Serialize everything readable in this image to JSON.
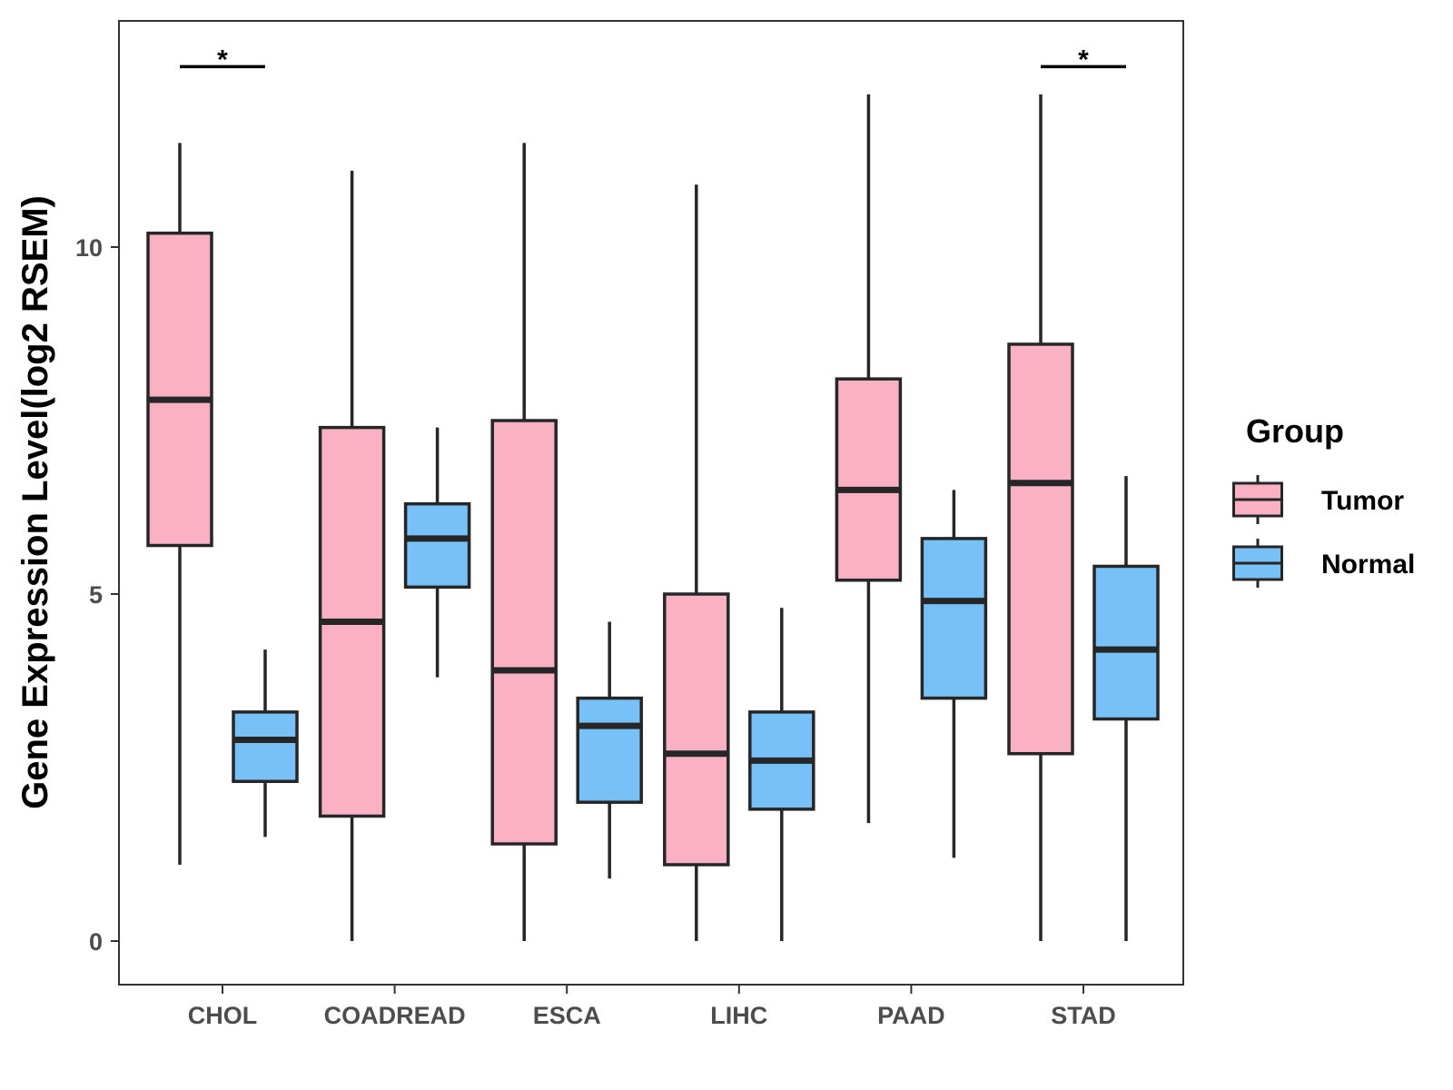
{
  "chart_data": {
    "type": "boxplot",
    "title": "",
    "xlabel": "",
    "ylabel": "Gene Expression Level(log2 RSEM)",
    "ylim": [
      -0.6,
      13.2
    ],
    "yticks": [
      0,
      5,
      10
    ],
    "categories": [
      "CHOL",
      "COADREAD",
      "ESCA",
      "LIHC",
      "PAAD",
      "STAD"
    ],
    "legend": {
      "title": "Group",
      "position": "right"
    },
    "series": [
      {
        "name": "Tumor",
        "color": "#FBB1C4",
        "boxes": [
          {
            "min": 1.1,
            "q1": 5.7,
            "median": 7.8,
            "q3": 10.2,
            "max": 11.5
          },
          {
            "min": 0.0,
            "q1": 1.8,
            "median": 4.6,
            "q3": 7.4,
            "max": 11.1
          },
          {
            "min": 0.0,
            "q1": 1.4,
            "median": 3.9,
            "q3": 7.5,
            "max": 11.5
          },
          {
            "min": 0.0,
            "q1": 1.1,
            "median": 2.7,
            "q3": 5.0,
            "max": 10.9
          },
          {
            "min": 1.7,
            "q1": 5.2,
            "median": 6.5,
            "q3": 8.1,
            "max": 12.2
          },
          {
            "min": 0.0,
            "q1": 2.7,
            "median": 6.6,
            "q3": 8.6,
            "max": 12.2
          }
        ]
      },
      {
        "name": "Normal",
        "color": "#77C1F8",
        "boxes": [
          {
            "min": 1.5,
            "q1": 2.3,
            "median": 2.9,
            "q3": 3.3,
            "max": 4.2
          },
          {
            "min": 3.8,
            "q1": 5.1,
            "median": 5.8,
            "q3": 6.3,
            "max": 7.4
          },
          {
            "min": 0.9,
            "q1": 2.0,
            "median": 3.1,
            "q3": 3.5,
            "max": 4.6
          },
          {
            "min": 0.0,
            "q1": 1.9,
            "median": 2.6,
            "q3": 3.3,
            "max": 4.8
          },
          {
            "min": 1.2,
            "q1": 3.5,
            "median": 4.9,
            "q3": 5.8,
            "max": 6.5
          },
          {
            "min": 0.0,
            "q1": 3.2,
            "median": 4.2,
            "q3": 5.4,
            "max": 6.7
          }
        ]
      }
    ],
    "annotations": [
      {
        "category": "CHOL",
        "text": "*",
        "y": 12.6
      },
      {
        "category": "STAD",
        "text": "*",
        "y": 12.6
      }
    ]
  }
}
